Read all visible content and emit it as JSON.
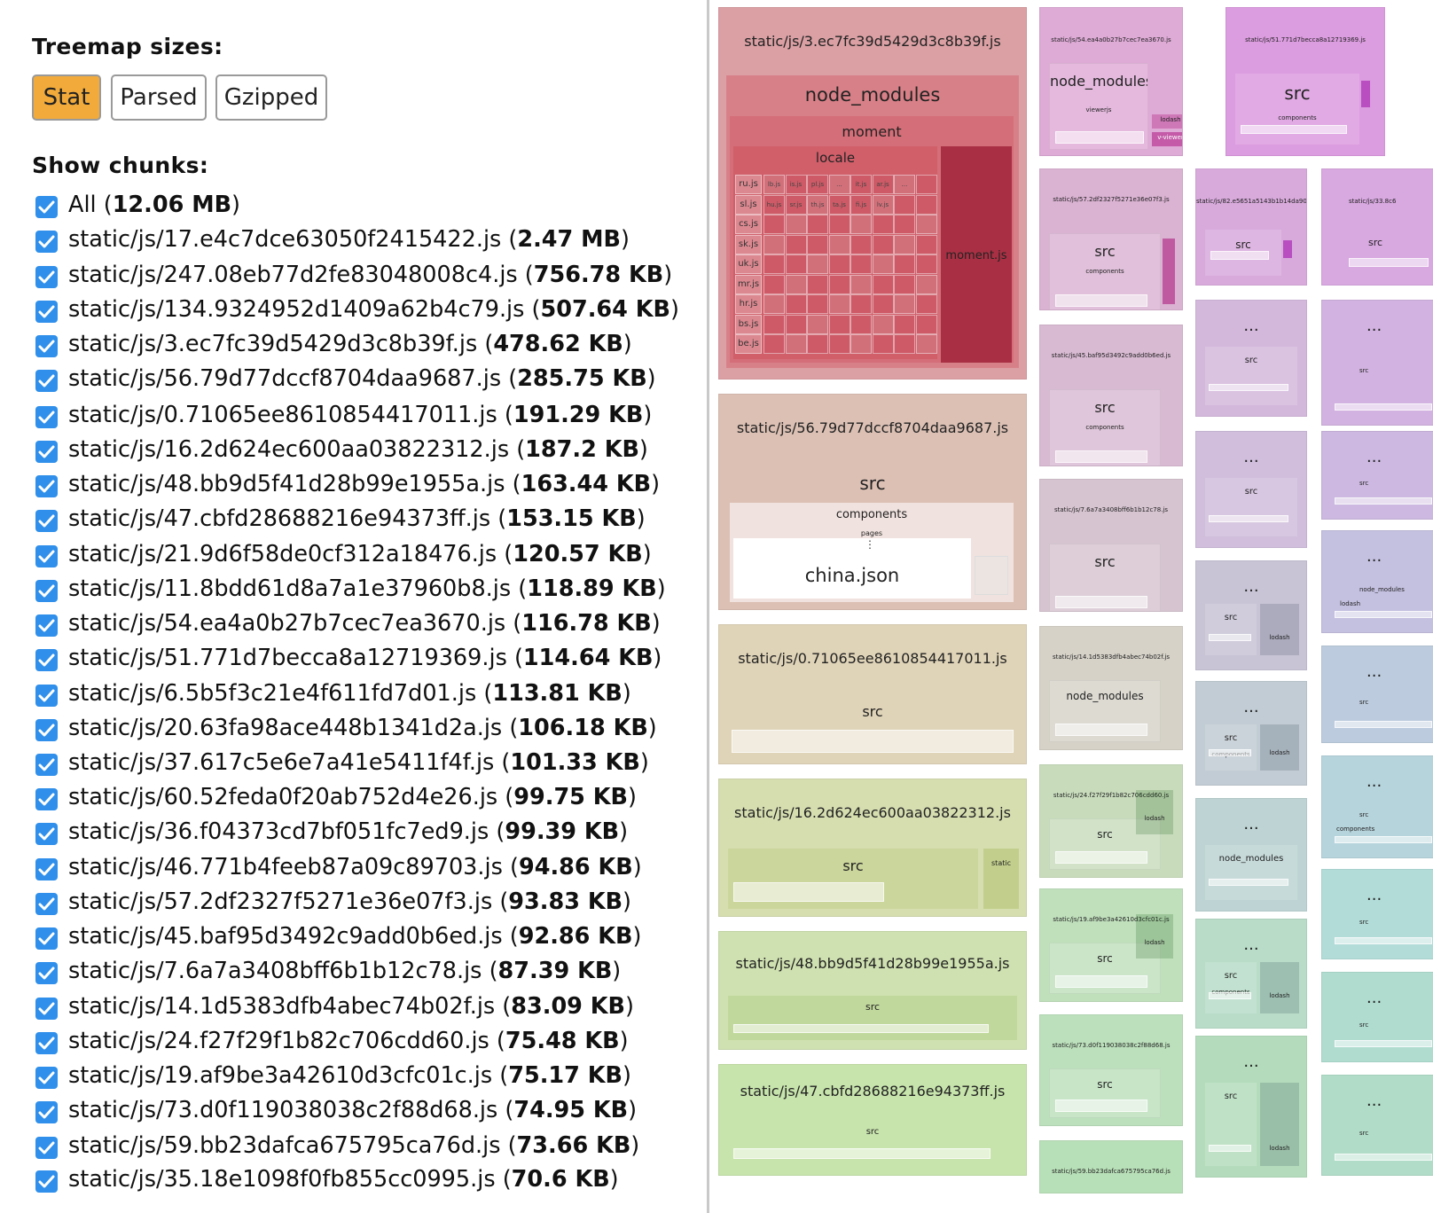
{
  "sidebar": {
    "sizes_title": "Treemap sizes:",
    "size_buttons": [
      "Stat",
      "Parsed",
      "Gzipped"
    ],
    "active_size": "Stat",
    "chunks_title": "Show chunks:",
    "chunks": [
      {
        "name": "All",
        "size": "12.06 MB"
      },
      {
        "name": "static/js/17.e4c7dce63050f2415422.js",
        "size": "2.47 MB"
      },
      {
        "name": "static/js/247.08eb77d2fe83048008c4.js",
        "size": "756.78 KB"
      },
      {
        "name": "static/js/134.9324952d1409a62b4c79.js",
        "size": "507.64 KB"
      },
      {
        "name": "static/js/3.ec7fc39d5429d3c8b39f.js",
        "size": "478.62 KB"
      },
      {
        "name": "static/js/56.79d77dccf8704daa9687.js",
        "size": "285.75 KB"
      },
      {
        "name": "static/js/0.71065ee8610854417011.js",
        "size": "191.29 KB"
      },
      {
        "name": "static/js/16.2d624ec600aa03822312.js",
        "size": "187.2 KB"
      },
      {
        "name": "static/js/48.bb9d5f41d28b99e1955a.js",
        "size": "163.44 KB"
      },
      {
        "name": "static/js/47.cbfd28688216e94373ff.js",
        "size": "153.15 KB"
      },
      {
        "name": "static/js/21.9d6f58de0cf312a18476.js",
        "size": "120.57 KB"
      },
      {
        "name": "static/js/11.8bdd61d8a7a1e37960b8.js",
        "size": "118.89 KB"
      },
      {
        "name": "static/js/54.ea4a0b27b7cec7ea3670.js",
        "size": "116.78 KB"
      },
      {
        "name": "static/js/51.771d7becca8a12719369.js",
        "size": "114.64 KB"
      },
      {
        "name": "static/js/6.5b5f3c21e4f611fd7d01.js",
        "size": "113.81 KB"
      },
      {
        "name": "static/js/20.63fa98ace448b1341d2a.js",
        "size": "106.18 KB"
      },
      {
        "name": "static/js/37.617c5e6e7a41e5411f4f.js",
        "size": "101.33 KB"
      },
      {
        "name": "static/js/60.52feda0f20ab752d4e26.js",
        "size": "99.75 KB"
      },
      {
        "name": "static/js/36.f04373cd7bf051fc7ed9.js",
        "size": "99.39 KB"
      },
      {
        "name": "static/js/46.771b4feeb87a09c89703.js",
        "size": "94.86 KB"
      },
      {
        "name": "static/js/57.2df2327f5271e36e07f3.js",
        "size": "93.83 KB"
      },
      {
        "name": "static/js/45.baf95d3492c9add0b6ed.js",
        "size": "92.86 KB"
      },
      {
        "name": "static/js/7.6a7a3408bff6b1b12c78.js",
        "size": "87.39 KB"
      },
      {
        "name": "static/js/14.1d5383dfb4abec74b02f.js",
        "size": "83.09 KB"
      },
      {
        "name": "static/js/24.f27f29f1b82c706cdd60.js",
        "size": "75.48 KB"
      },
      {
        "name": "static/js/19.af9be3a42610d3cfc01c.js",
        "size": "75.17 KB"
      },
      {
        "name": "static/js/73.d0f119038038c2f88d68.js",
        "size": "74.95 KB"
      },
      {
        "name": "static/js/59.bb23dafca675795ca76d.js",
        "size": "73.66 KB"
      },
      {
        "name": "static/js/35.18e1098f0fb855cc0995.js",
        "size": "70.6 KB"
      }
    ]
  },
  "treemap": {
    "big": [
      {
        "title": "static/js/3.ec7fc39d5429d3c8b39f.js",
        "color": "#dba0a4",
        "node_modules": "node_modules",
        "moment": "moment",
        "locale": "locale",
        "moment_js": "moment.js",
        "locales": [
          "ru.js",
          "sl.js",
          "cs.js",
          "sk.js",
          "uk.js",
          "mr.js",
          "hr.js",
          "bs.js",
          "be.js"
        ],
        "top_locales": [
          "lb.js",
          "is.js",
          "pl.js",
          "...",
          "it.js",
          "ar.js",
          "..."
        ],
        "row2_locales": [
          "hu.js",
          "sr.js",
          "th.js",
          "ta.js",
          "fi.js",
          "lv.js"
        ]
      },
      {
        "title": "static/js/56.79d77dccf8704daa9687.js",
        "color": "#dcc0b4",
        "src": "src",
        "components": "components",
        "pages": "pages",
        "china": "china.json"
      },
      {
        "title": "static/js/0.71065ee8610854417011.js",
        "color": "#e0d4b8",
        "src": "src",
        "components": "components"
      },
      {
        "title": "static/js/16.2d624ec600aa03822312.js",
        "color": "#d6deb0",
        "src": "src",
        "static": "static"
      },
      {
        "title": "static/js/48.bb9d5f41d28b99e1955a.js",
        "color": "#cfe1b0",
        "src": "src"
      },
      {
        "title": "static/js/47.cbfd28688216e94373ff.js",
        "color": "#c7e4ac",
        "src": "src"
      }
    ],
    "mid": [
      {
        "title": "static/js/54.ea4a0b27b7cec7ea3670.js",
        "label": "node_modules",
        "sub1": "viewerjs",
        "sub2": "lodash",
        "sub3": "v-viewer",
        "color": "#deaad6"
      },
      {
        "title": "static/js/57.2df2327f5271e36e07f3.js",
        "label": "src",
        "sub1": "components",
        "color": "#dab2d2"
      },
      {
        "title": "static/js/45.baf95d3492c9add0b6ed.js",
        "label": "src",
        "sub1": "components",
        "color": "#d8bad2"
      },
      {
        "title": "static/js/7.6a7a3408bff6b1b12c78.js",
        "label": "src",
        "color": "#d6c4d0"
      },
      {
        "title": "static/js/14.1d5383dfb4abec74b02f.js",
        "label": "node_modules",
        "color": "#d6d2c8"
      },
      {
        "title": "static/js/24.f27f29f1b82c706cdd60.js",
        "label": "src",
        "sub2": "lodash",
        "color": "#c8dcbc"
      },
      {
        "title": "static/js/19.af9be3a42610d3cfc01c.js",
        "label": "src",
        "sub2": "lodash",
        "color": "#c0e0bc"
      },
      {
        "title": "static/js/73.d0f119038038c2f88d68.js",
        "label": "src",
        "color": "#bce0bc"
      },
      {
        "title": "static/js/59.bb23dafca675795ca76d.js",
        "label": "",
        "color": "#b8e0b8"
      }
    ],
    "third": [
      {
        "title": "static/js/51.771d7becca8a12719369.js",
        "label": "src",
        "sub1": "components",
        "color": "#dc9ce0"
      },
      {
        "title": "static/js/82.e5651a5143b1b14da90.js",
        "label": "src",
        "color": "#d8aadc"
      },
      {
        "label": "...",
        "sub": "src",
        "color": "#d4b8dc"
      },
      {
        "label": "...",
        "sub": "src",
        "color": "#d0bedc"
      },
      {
        "label": "...",
        "sub": "src",
        "sub2": "...",
        "sub3": "lodash",
        "color": "#c8c4d6"
      },
      {
        "label": "...",
        "sub": "src",
        "sub1": "components",
        "sub3": "lodash",
        "color": "#c2ccd4"
      },
      {
        "label": "...",
        "sub": "node_modules",
        "color": "#bed4d4"
      },
      {
        "label": "...",
        "sub": "src",
        "sub1": "components",
        "sub3": "lodash",
        "color": "#b8dcc8"
      },
      {
        "label": "...",
        "sub": "src",
        "sub3": "lodash",
        "color": "#b4dcbc"
      }
    ],
    "fourth": [
      {
        "title": "static/js/33.8c6",
        "label": "src",
        "color": "#d8a8e0"
      },
      {
        "label": "...",
        "sub": "src",
        "color": "#d2b2e0"
      },
      {
        "label": "...",
        "sub": "src",
        "color": "#ccb8e0"
      },
      {
        "label": "...",
        "sub": "node_modules",
        "sub2": "lodash",
        "color": "#c4c0e0"
      },
      {
        "label": "...",
        "sub": "src",
        "color": "#bcccde"
      },
      {
        "label": "...",
        "sub": "src",
        "sub1": "components",
        "color": "#b6d4dc"
      },
      {
        "label": "...",
        "sub": "src",
        "color": "#b2dcd8"
      },
      {
        "label": "...",
        "sub": "src",
        "color": "#b0dcd0"
      },
      {
        "label": "...",
        "sub": "src",
        "color": "#b0dcc8"
      }
    ]
  }
}
